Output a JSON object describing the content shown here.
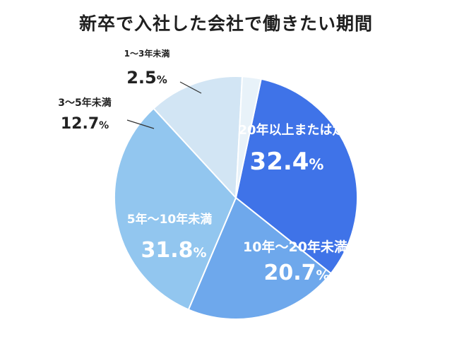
{
  "chart_data": {
    "type": "pie",
    "title": "新卒で入社した会社で働きたい期間",
    "slices": [
      {
        "label": "20年以上または定年まで",
        "value": 32.4,
        "display": "32.4",
        "unit": "%",
        "color": "#3f73e8",
        "text_color": "#ffffff"
      },
      {
        "label": "10年〜20年未満",
        "value": 20.7,
        "display": "20.7",
        "unit": "%",
        "color": "#6ea8ec",
        "text_color": "#ffffff"
      },
      {
        "label": "5年〜10年未満",
        "value": 31.8,
        "display": "31.8",
        "unit": "%",
        "color": "#92c6ef",
        "text_color": "#ffffff"
      },
      {
        "label": "3〜5年未満",
        "value": 12.7,
        "display": "12.7",
        "unit": "%",
        "color": "#d2e5f4",
        "text_color": "#222222"
      },
      {
        "label": "1〜3年未満",
        "value": 2.5,
        "display": "2.5",
        "unit": "%",
        "color": "#e8f2f9",
        "text_color": "#222222"
      }
    ]
  }
}
